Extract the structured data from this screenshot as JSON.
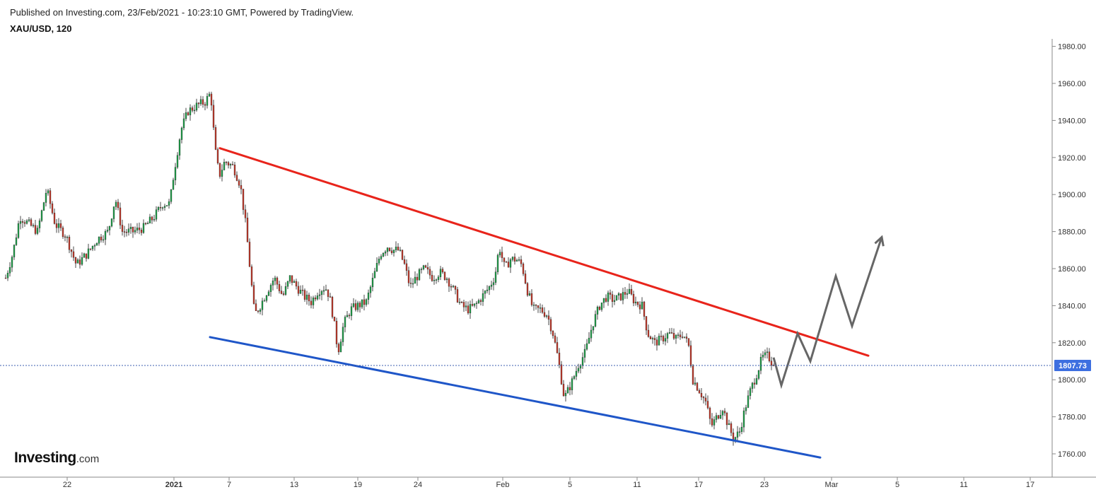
{
  "header": {
    "published": "Published on Investing.com, 23/Feb/2021 - 10:23:10 GMT, Powered by TradingView.",
    "symbol": "XAU/USD, 120"
  },
  "logo": {
    "main": "Investing",
    "suffix": ".com"
  },
  "colors": {
    "up_candle": "#1f9e4a",
    "down_candle": "#c0392b",
    "resistance_line": "#e8241b",
    "support_line": "#1f56c8",
    "projection": "#666666",
    "price_tag": "#3d6fe0",
    "price_line": "#3d5fb0"
  },
  "chart_data": {
    "type": "candlestick",
    "instrument": "XAU/USD",
    "timeframe": "120",
    "ylim": [
      1755,
      1985
    ],
    "y_ticks": [
      1760,
      1780,
      1800,
      1820,
      1840,
      1860,
      1880,
      1900,
      1920,
      1940,
      1960,
      1980
    ],
    "y_tick_labels": [
      "1760.00",
      "1780.00",
      "1800.00",
      "1820.00",
      "1840.00",
      "1860.00",
      "1880.00",
      "1900.00",
      "1920.00",
      "1940.00",
      "1960.00",
      "1980.00"
    ],
    "x_ticks": [
      {
        "label": "22",
        "bold": false
      },
      {
        "label": "2021",
        "bold": true
      },
      {
        "label": "7",
        "bold": false
      },
      {
        "label": "13",
        "bold": false
      },
      {
        "label": "19",
        "bold": false
      },
      {
        "label": "24",
        "bold": false
      },
      {
        "label": "Feb",
        "bold": false
      },
      {
        "label": "5",
        "bold": false
      },
      {
        "label": "11",
        "bold": false
      },
      {
        "label": "17",
        "bold": false
      },
      {
        "label": "23",
        "bold": false
      },
      {
        "label": "Mar",
        "bold": false
      },
      {
        "label": "5",
        "bold": false
      },
      {
        "label": "11",
        "bold": false
      },
      {
        "label": "17",
        "bold": false
      }
    ],
    "current_price": 1807.73,
    "current_price_label": "1807.73",
    "close_path": [
      {
        "x": 0,
        "y": 1855
      },
      {
        "x": 10,
        "y": 1868
      },
      {
        "x": 20,
        "y": 1888
      },
      {
        "x": 30,
        "y": 1885
      },
      {
        "x": 45,
        "y": 1880
      },
      {
        "x": 58,
        "y": 1903
      },
      {
        "x": 70,
        "y": 1884
      },
      {
        "x": 85,
        "y": 1878
      },
      {
        "x": 100,
        "y": 1862
      },
      {
        "x": 115,
        "y": 1868
      },
      {
        "x": 130,
        "y": 1876
      },
      {
        "x": 145,
        "y": 1880
      },
      {
        "x": 155,
        "y": 1898
      },
      {
        "x": 165,
        "y": 1880
      },
      {
        "x": 180,
        "y": 1880
      },
      {
        "x": 195,
        "y": 1882
      },
      {
        "x": 210,
        "y": 1888
      },
      {
        "x": 222,
        "y": 1895
      },
      {
        "x": 232,
        "y": 1895
      },
      {
        "x": 238,
        "y": 1912
      },
      {
        "x": 248,
        "y": 1935
      },
      {
        "x": 258,
        "y": 1945
      },
      {
        "x": 270,
        "y": 1948
      },
      {
        "x": 282,
        "y": 1950
      },
      {
        "x": 290,
        "y": 1955
      },
      {
        "x": 296,
        "y": 1925
      },
      {
        "x": 302,
        "y": 1910
      },
      {
        "x": 310,
        "y": 1918
      },
      {
        "x": 322,
        "y": 1915
      },
      {
        "x": 332,
        "y": 1905
      },
      {
        "x": 340,
        "y": 1882
      },
      {
        "x": 346,
        "y": 1858
      },
      {
        "x": 352,
        "y": 1835
      },
      {
        "x": 360,
        "y": 1840
      },
      {
        "x": 370,
        "y": 1848
      },
      {
        "x": 380,
        "y": 1855
      },
      {
        "x": 392,
        "y": 1845
      },
      {
        "x": 402,
        "y": 1855
      },
      {
        "x": 412,
        "y": 1850
      },
      {
        "x": 422,
        "y": 1845
      },
      {
        "x": 432,
        "y": 1842
      },
      {
        "x": 442,
        "y": 1848
      },
      {
        "x": 452,
        "y": 1850
      },
      {
        "x": 458,
        "y": 1845
      },
      {
        "x": 464,
        "y": 1832
      },
      {
        "x": 470,
        "y": 1815
      },
      {
        "x": 478,
        "y": 1830
      },
      {
        "x": 488,
        "y": 1838
      },
      {
        "x": 498,
        "y": 1840
      },
      {
        "x": 510,
        "y": 1842
      },
      {
        "x": 520,
        "y": 1855
      },
      {
        "x": 530,
        "y": 1868
      },
      {
        "x": 540,
        "y": 1872
      },
      {
        "x": 548,
        "y": 1870
      },
      {
        "x": 556,
        "y": 1870
      },
      {
        "x": 564,
        "y": 1862
      },
      {
        "x": 572,
        "y": 1850
      },
      {
        "x": 580,
        "y": 1855
      },
      {
        "x": 592,
        "y": 1860
      },
      {
        "x": 604,
        "y": 1855
      },
      {
        "x": 614,
        "y": 1858
      },
      {
        "x": 624,
        "y": 1855
      },
      {
        "x": 634,
        "y": 1848
      },
      {
        "x": 644,
        "y": 1840
      },
      {
        "x": 654,
        "y": 1838
      },
      {
        "x": 664,
        "y": 1840
      },
      {
        "x": 674,
        "y": 1845
      },
      {
        "x": 684,
        "y": 1850
      },
      {
        "x": 692,
        "y": 1856
      },
      {
        "x": 698,
        "y": 1872
      },
      {
        "x": 706,
        "y": 1860
      },
      {
        "x": 714,
        "y": 1865
      },
      {
        "x": 722,
        "y": 1865
      },
      {
        "x": 730,
        "y": 1862
      },
      {
        "x": 738,
        "y": 1848
      },
      {
        "x": 746,
        "y": 1838
      },
      {
        "x": 756,
        "y": 1838
      },
      {
        "x": 766,
        "y": 1835
      },
      {
        "x": 774,
        "y": 1825
      },
      {
        "x": 782,
        "y": 1810
      },
      {
        "x": 790,
        "y": 1790
      },
      {
        "x": 800,
        "y": 1798
      },
      {
        "x": 810,
        "y": 1808
      },
      {
        "x": 820,
        "y": 1815
      },
      {
        "x": 830,
        "y": 1830
      },
      {
        "x": 840,
        "y": 1840
      },
      {
        "x": 850,
        "y": 1845
      },
      {
        "x": 860,
        "y": 1843
      },
      {
        "x": 870,
        "y": 1845
      },
      {
        "x": 880,
        "y": 1848
      },
      {
        "x": 890,
        "y": 1842
      },
      {
        "x": 900,
        "y": 1840
      },
      {
        "x": 908,
        "y": 1825
      },
      {
        "x": 918,
        "y": 1820
      },
      {
        "x": 928,
        "y": 1822
      },
      {
        "x": 938,
        "y": 1825
      },
      {
        "x": 948,
        "y": 1822
      },
      {
        "x": 958,
        "y": 1825
      },
      {
        "x": 966,
        "y": 1818
      },
      {
        "x": 972,
        "y": 1800
      },
      {
        "x": 980,
        "y": 1795
      },
      {
        "x": 990,
        "y": 1788
      },
      {
        "x": 998,
        "y": 1775
      },
      {
        "x": 1006,
        "y": 1780
      },
      {
        "x": 1014,
        "y": 1785
      },
      {
        "x": 1022,
        "y": 1775
      },
      {
        "x": 1030,
        "y": 1768
      },
      {
        "x": 1038,
        "y": 1772
      },
      {
        "x": 1046,
        "y": 1785
      },
      {
        "x": 1054,
        "y": 1795
      },
      {
        "x": 1062,
        "y": 1803
      },
      {
        "x": 1070,
        "y": 1812
      },
      {
        "x": 1078,
        "y": 1813
      },
      {
        "x": 1086,
        "y": 1807.73
      }
    ],
    "trendlines": [
      {
        "name": "resistance",
        "from": {
          "x": 303,
          "y": 1925
        },
        "to": {
          "x": 1220,
          "y": 1813
        }
      },
      {
        "name": "support",
        "from": {
          "x": 289,
          "y": 1823
        },
        "to": {
          "x": 1152,
          "y": 1758
        }
      }
    ],
    "projection_path": [
      {
        "x": 1086,
        "y": 1812
      },
      {
        "x": 1097,
        "y": 1797
      },
      {
        "x": 1120,
        "y": 1825
      },
      {
        "x": 1138,
        "y": 1810
      },
      {
        "x": 1174,
        "y": 1856
      },
      {
        "x": 1197,
        "y": 1829
      },
      {
        "x": 1239,
        "y": 1877
      }
    ]
  }
}
